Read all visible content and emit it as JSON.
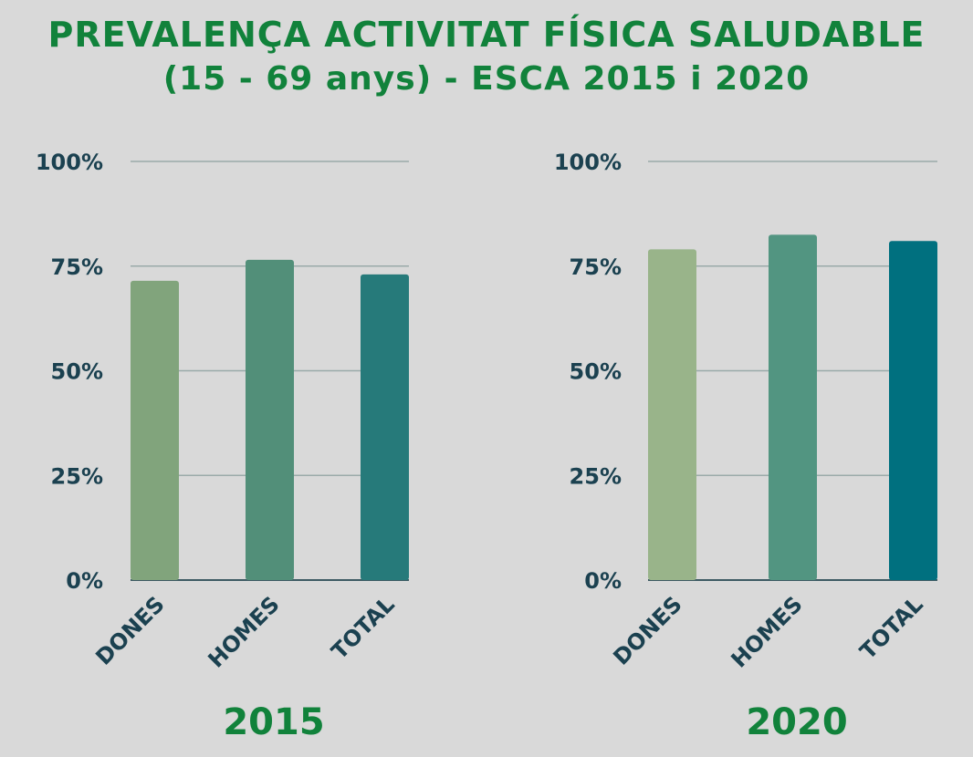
{
  "title": {
    "line1": "PREVALENÇA ACTIVITAT FÍSICA SALUDABLE",
    "line2": "(15 - 69 anys) - ESCA 2015 i 2020"
  },
  "chart_data": [
    {
      "type": "bar",
      "title": "2015",
      "categories": [
        "DONES",
        "HOMES",
        "TOTAL"
      ],
      "values": [
        71.5,
        76.5,
        73
      ],
      "colors": [
        "#81a47c",
        "#528f79",
        "#267a7a"
      ],
      "yticks": [
        "0%",
        "25%",
        "50%",
        "75%",
        "100%"
      ],
      "ylim": [
        0,
        100
      ],
      "grid": true
    },
    {
      "type": "bar",
      "title": "2020",
      "categories": [
        "DONES",
        "HOMES",
        "TOTAL"
      ],
      "values": [
        79,
        82.5,
        81
      ],
      "colors": [
        "#99b48a",
        "#529581",
        "#00707f"
      ],
      "yticks": [
        "0%",
        "25%",
        "50%",
        "75%",
        "100%"
      ],
      "ylim": [
        0,
        100
      ],
      "grid": true
    }
  ]
}
